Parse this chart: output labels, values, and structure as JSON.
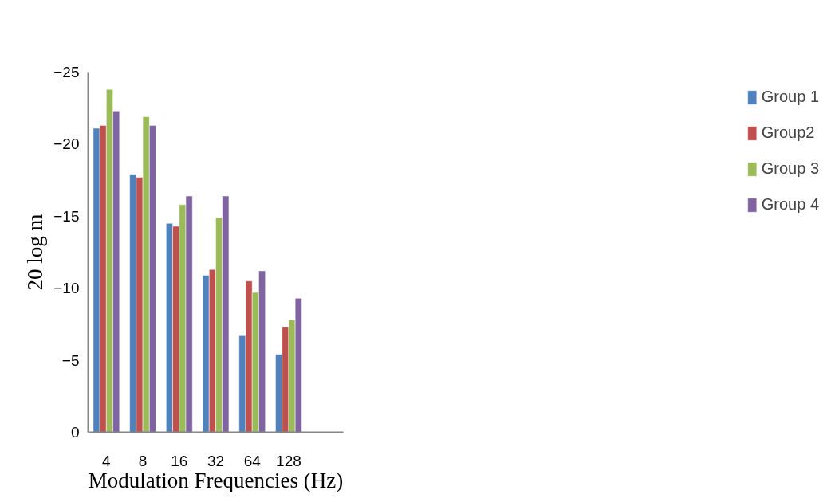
{
  "chart_data": {
    "type": "bar",
    "xlabel": "Modulation Frequencies (Hz)",
    "ylabel": "20 log m",
    "categories": [
      "4",
      "8",
      "16",
      "32",
      "64",
      "128",
      null
    ],
    "series": [
      {
        "name": "Group 1",
        "color": "#4f81bd",
        "values": [
          -21.1,
          -17.9,
          -14.5,
          -10.9,
          -6.7,
          -5.4,
          null
        ]
      },
      {
        "name": "Group2",
        "color": "#c0504d",
        "values": [
          -21.3,
          -17.7,
          -14.3,
          -11.3,
          -10.5,
          -7.3,
          null
        ]
      },
      {
        "name": "Group 3",
        "color": "#9bbb59",
        "values": [
          -23.8,
          -21.9,
          -15.8,
          -14.9,
          -9.7,
          -7.8,
          null
        ]
      },
      {
        "name": "Group 4",
        "color": "#8064a2",
        "values": [
          -22.3,
          -21.3,
          -16.4,
          -16.4,
          -11.2,
          -9.3,
          null
        ]
      }
    ],
    "ylim": [
      0,
      -25
    ],
    "yticks": [
      0,
      -5,
      -10,
      -15,
      -20,
      -25
    ],
    "grid": false,
    "legend": "right"
  }
}
